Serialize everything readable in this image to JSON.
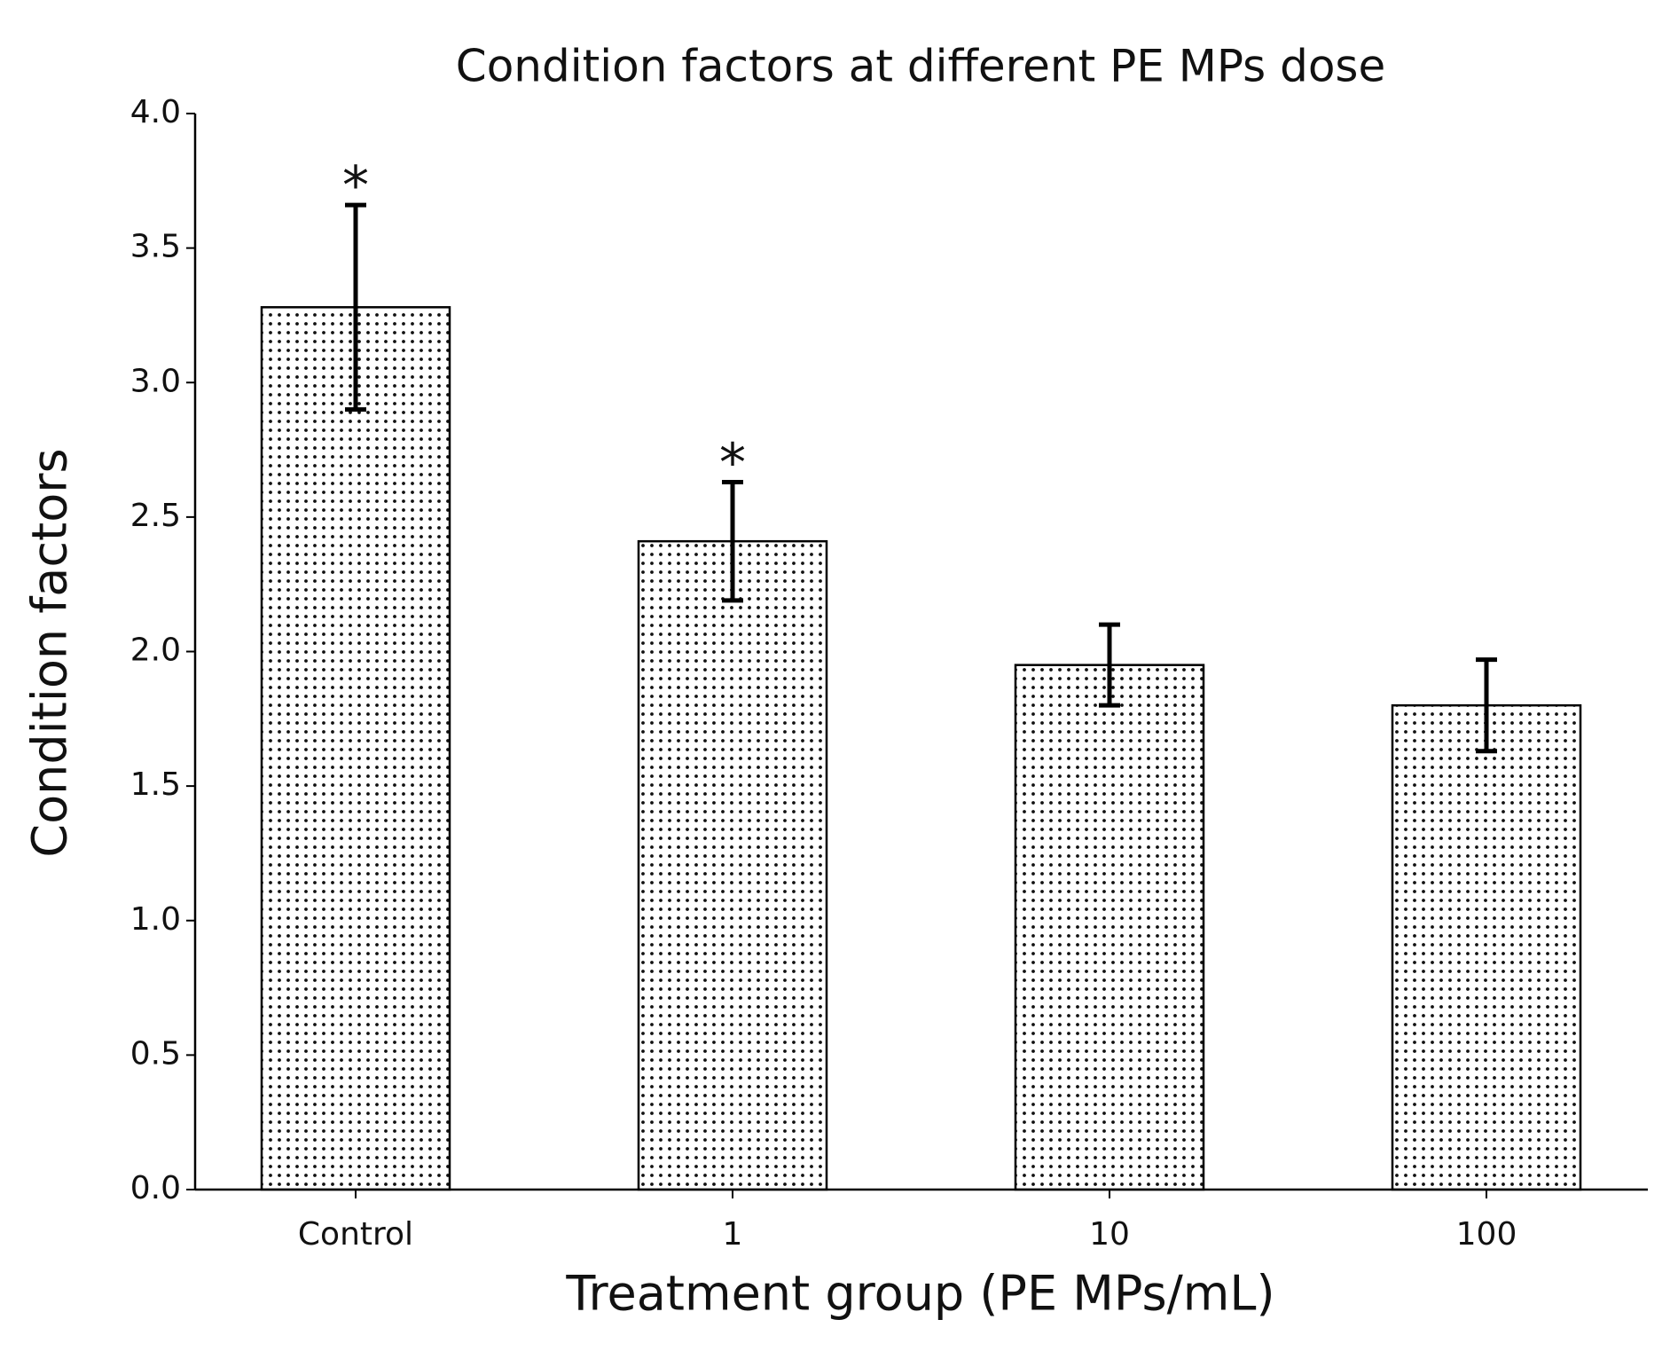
{
  "chart_data": {
    "type": "bar",
    "title": "Condition factors at different PE MPs dose",
    "x_label": "Treatment group (PE MPs/mL)",
    "y_label": "Condition factors",
    "categories": [
      "Control",
      "1",
      "10",
      "100"
    ],
    "values": [
      3.28,
      2.41,
      1.95,
      1.8
    ],
    "errors": [
      0.38,
      0.22,
      0.15,
      0.17
    ],
    "color": "#000000",
    "ylim": [
      0,
      4
    ],
    "yticks": [
      {
        "value": 0,
        "label": "0.0"
      },
      {
        "value": 0.5,
        "label": "0.5"
      },
      {
        "value": 1,
        "label": "1.0"
      },
      {
        "value": 1.5,
        "label": "1.5"
      },
      {
        "value": 2,
        "label": "2.0"
      },
      {
        "value": 2.5,
        "label": "2.5"
      },
      {
        "value": 3,
        "label": "3.0"
      },
      {
        "value": 3.5,
        "label": "3.5"
      },
      {
        "value": 4,
        "label": "4.0"
      }
    ],
    "annotations": [
      {
        "category": "Control",
        "text": "*"
      },
      {
        "category": "1",
        "text": "*"
      }
    ],
    "grid": false
  }
}
